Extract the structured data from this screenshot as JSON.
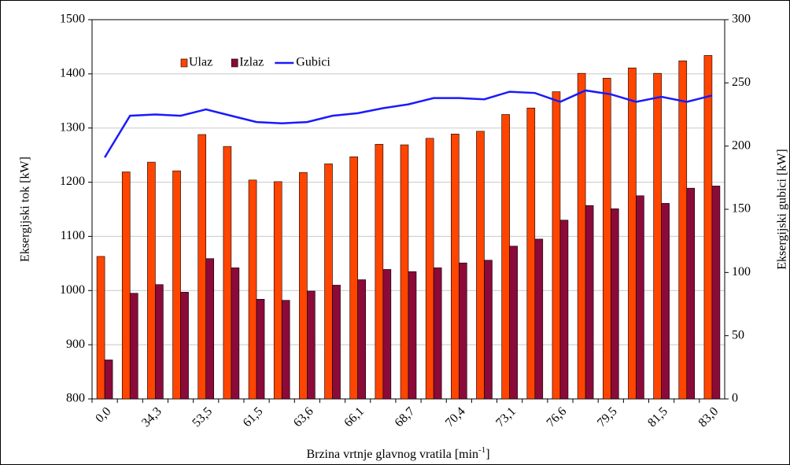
{
  "chart_data": {
    "type": "bar",
    "xlabel": [
      "Brzina vrtnje glavnog vratila [min",
      "-1",
      "]"
    ],
    "ylabel": "Eksergijski tok [kW]",
    "y2label": "Eksergijski gubici [kW]",
    "categories": [
      "0,0",
      null,
      "34,3",
      null,
      "53,5",
      null,
      "61,5",
      null,
      "63,6",
      null,
      "66,1",
      null,
      "68,7",
      null,
      "70,4",
      null,
      "73,1",
      null,
      "76,6",
      null,
      "79,5",
      null,
      "81,5",
      null,
      "83,0"
    ],
    "series": [
      {
        "name": "Ulaz",
        "type": "bar",
        "color": "#ff4500",
        "values": [
          1063,
          1219,
          1237,
          1221,
          1288,
          1266,
          1204,
          1201,
          1218,
          1234,
          1247,
          1270,
          1269,
          1281,
          1289,
          1294,
          1325,
          1337,
          1367,
          1401,
          1392,
          1411,
          1401,
          1424,
          1434
        ]
      },
      {
        "name": "Izlaz",
        "type": "bar",
        "color": "#8b0a3a",
        "values": [
          872,
          995,
          1011,
          997,
          1059,
          1042,
          984,
          982,
          999,
          1010,
          1020,
          1039,
          1035,
          1042,
          1051,
          1056,
          1082,
          1095,
          1130,
          1157,
          1151,
          1175,
          1161,
          1189,
          1193
        ]
      },
      {
        "name": "Gubici",
        "type": "line",
        "axis": "y2",
        "color": "#1a1aff",
        "values": [
          191,
          224,
          225,
          224,
          229,
          224,
          219,
          218,
          219,
          224,
          226,
          230,
          233,
          238,
          238,
          237,
          243,
          242,
          235,
          244,
          241,
          235,
          239,
          235,
          240
        ]
      }
    ],
    "ylim": [
      800,
      1500
    ],
    "yticks": [
      800,
      900,
      1000,
      1100,
      1200,
      1300,
      1400,
      1500
    ],
    "y2lim": [
      0,
      300
    ],
    "y2ticks": [
      0,
      50,
      100,
      150,
      200,
      250,
      300
    ],
    "grid": true,
    "legend": "top-left"
  }
}
